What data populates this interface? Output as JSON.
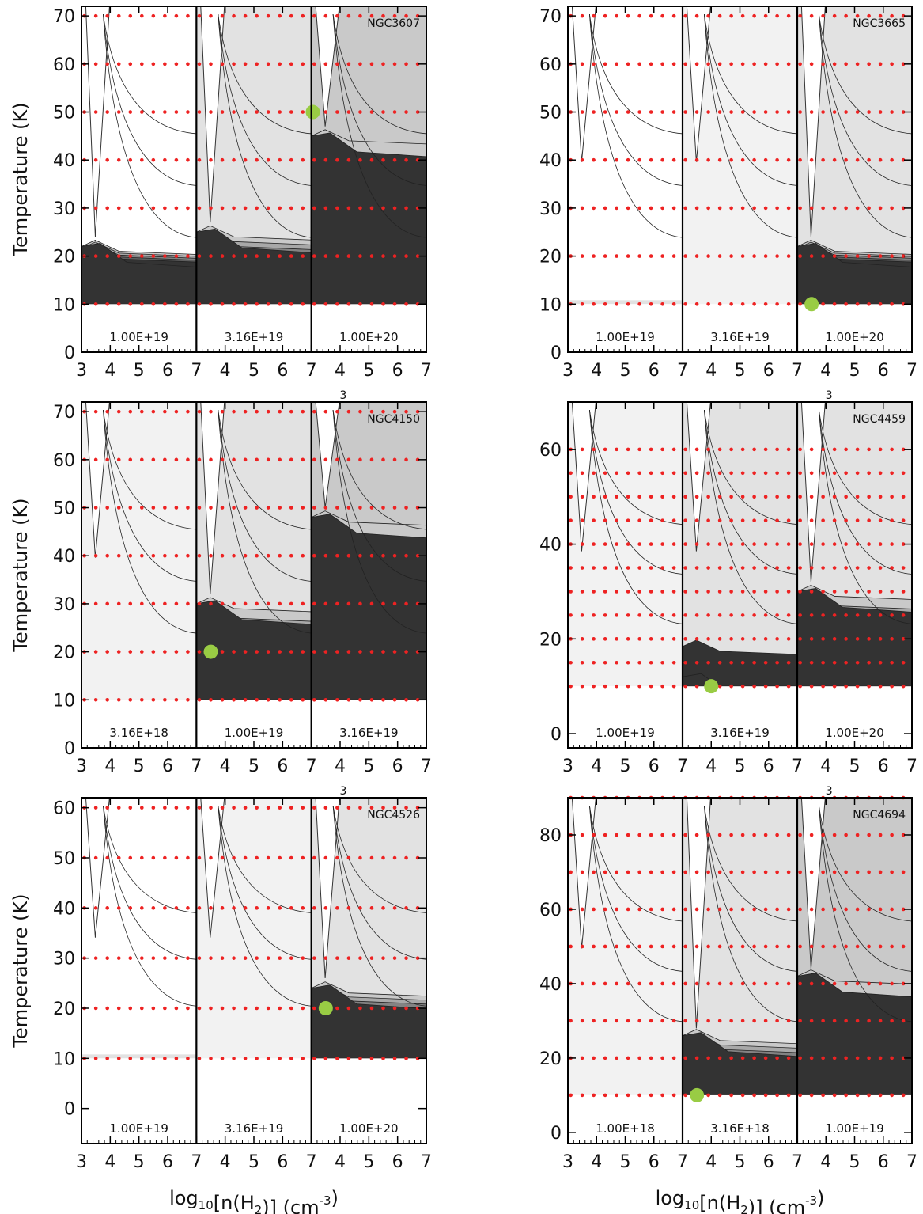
{
  "chart_data": [
    {
      "type": "contour",
      "title": "NGC3607",
      "ylabel": "Temperature  (K)",
      "ylim": [
        0,
        72
      ],
      "yticks": [
        0,
        10,
        20,
        30,
        40,
        50,
        60,
        70
      ],
      "xlim": [
        3,
        7
      ],
      "xticks": [
        "3",
        "4",
        "5",
        "6",
        "7"
      ],
      "panel_labels": [
        "1.00E+19",
        "3.16E+19",
        "1.00E+20"
      ],
      "grid_points": {
        "x": [
          3.1,
          3.5,
          3.9,
          4.3,
          4.7,
          5.1,
          5.5,
          5.9,
          6.3,
          6.7
        ],
        "y": [
          10,
          20,
          30,
          40,
          50,
          60,
          70
        ]
      },
      "best_fit": {
        "subpanel": 3,
        "log_nH2": 3.05,
        "temperature": 50
      },
      "darkest_top_by_subpanel": [
        22,
        25,
        45
      ]
    },
    {
      "type": "contour",
      "title": "NGC3665",
      "ylabel": "",
      "ylim": [
        0,
        72
      ],
      "yticks": [
        0,
        10,
        20,
        30,
        40,
        50,
        60,
        70
      ],
      "xlim": [
        3,
        7
      ],
      "xticks": [
        "3",
        "4",
        "5",
        "6",
        "7"
      ],
      "panel_labels": [
        "1.00E+19",
        "3.16E+19",
        "1.00E+20"
      ],
      "grid_points": {
        "x": [
          3.1,
          3.5,
          3.9,
          4.3,
          4.7,
          5.1,
          5.5,
          5.9,
          6.3,
          6.7
        ],
        "y": [
          10,
          20,
          30,
          40,
          50,
          60,
          70
        ]
      },
      "best_fit": {
        "subpanel": 3,
        "log_nH2": 3.5,
        "temperature": 10
      },
      "darkest_top_by_subpanel": [
        0,
        0,
        22
      ]
    },
    {
      "type": "contour",
      "title": "NGC4150",
      "ylabel": "Temperature  (K)",
      "ylim": [
        0,
        72
      ],
      "yticks": [
        0,
        10,
        20,
        30,
        40,
        50,
        60,
        70
      ],
      "xlim": [
        3,
        7
      ],
      "xticks": [
        "3",
        "4",
        "5",
        "6",
        "7"
      ],
      "panel_labels": [
        "3.16E+18",
        "1.00E+19",
        "3.16E+19"
      ],
      "grid_points": {
        "x": [
          3.1,
          3.5,
          3.9,
          4.3,
          4.7,
          5.1,
          5.5,
          5.9,
          6.3,
          6.7
        ],
        "y": [
          10,
          20,
          30,
          40,
          50,
          60,
          70
        ]
      },
      "best_fit": {
        "subpanel": 2,
        "log_nH2": 3.5,
        "temperature": 20
      },
      "darkest_top_by_subpanel": [
        0,
        30,
        48
      ]
    },
    {
      "type": "contour",
      "title": "NGC4459",
      "ylabel": "",
      "ylim": [
        -3,
        70
      ],
      "yticks": [
        0,
        20,
        40,
        60
      ],
      "xlim": [
        3,
        7
      ],
      "xticks": [
        "3",
        "4",
        "5",
        "6",
        "7"
      ],
      "panel_labels": [
        "1.00E+19",
        "3.16E+19",
        "1.00E+20"
      ],
      "grid_points": {
        "x": [
          3.1,
          3.5,
          3.9,
          4.3,
          4.7,
          5.1,
          5.5,
          5.9,
          6.3,
          6.7
        ],
        "y": [
          10,
          15,
          20,
          25,
          30,
          35,
          40,
          45,
          50,
          55,
          60
        ]
      },
      "best_fit": {
        "subpanel": 2,
        "log_nH2": 4.0,
        "temperature": 10
      },
      "darkest_top_by_subpanel": [
        0,
        12,
        30
      ]
    },
    {
      "type": "contour",
      "title": "NGC4526",
      "ylabel": "Temperature  (K)",
      "ylim": [
        -7,
        62
      ],
      "yticks": [
        0,
        10,
        20,
        30,
        40,
        50,
        60
      ],
      "xlim": [
        3,
        7
      ],
      "xticks": [
        "3",
        "4",
        "5",
        "6",
        "7"
      ],
      "panel_labels": [
        "1.00E+19",
        "3.16E+19",
        "1.00E+20"
      ],
      "grid_points": {
        "x": [
          3.1,
          3.5,
          3.9,
          4.3,
          4.7,
          5.1,
          5.5,
          5.9,
          6.3,
          6.7
        ],
        "y": [
          10,
          20,
          30,
          40,
          50,
          60
        ]
      },
      "best_fit": {
        "subpanel": 3,
        "log_nH2": 3.5,
        "temperature": 20
      },
      "darkest_top_by_subpanel": [
        0,
        0,
        24
      ]
    },
    {
      "type": "contour",
      "title": "NGC4694",
      "ylabel": "",
      "ylim": [
        -3,
        90
      ],
      "yticks": [
        0,
        20,
        40,
        60,
        80
      ],
      "xlim": [
        3,
        7
      ],
      "xticks": [
        "3",
        "4",
        "5",
        "6",
        "7"
      ],
      "panel_labels": [
        "1.00E+18",
        "3.16E+18",
        "1.00E+19"
      ],
      "grid_points": {
        "x": [
          3.1,
          3.5,
          3.9,
          4.3,
          4.7,
          5.1,
          5.5,
          5.9,
          6.3,
          6.7
        ],
        "y": [
          10,
          20,
          30,
          40,
          50,
          60,
          70,
          80,
          90
        ]
      },
      "best_fit": {
        "subpanel": 2,
        "log_nH2": 3.5,
        "temperature": 10
      },
      "darkest_top_by_subpanel": [
        0,
        26,
        42
      ]
    }
  ],
  "xlabel": {
    "prefix": "log",
    "sub": "10",
    "mid": "[n(H",
    "sub2": "2",
    "suffix": ")]  (cm",
    "sup": "-3",
    "end": ")"
  },
  "stray_tick_label": "3",
  "colors": {
    "grid_dot": "#ee2222",
    "best_fit": "#99cc44",
    "shade_lightest": "#f2f2f2",
    "shade_light": "#e2e2e2",
    "shade_mid": "#c9c9c9",
    "shade_midlow": "#a8a8a8",
    "shade_dark": "#838383",
    "shade_darker": "#5e5e5e",
    "shade_darkest": "#333333"
  }
}
